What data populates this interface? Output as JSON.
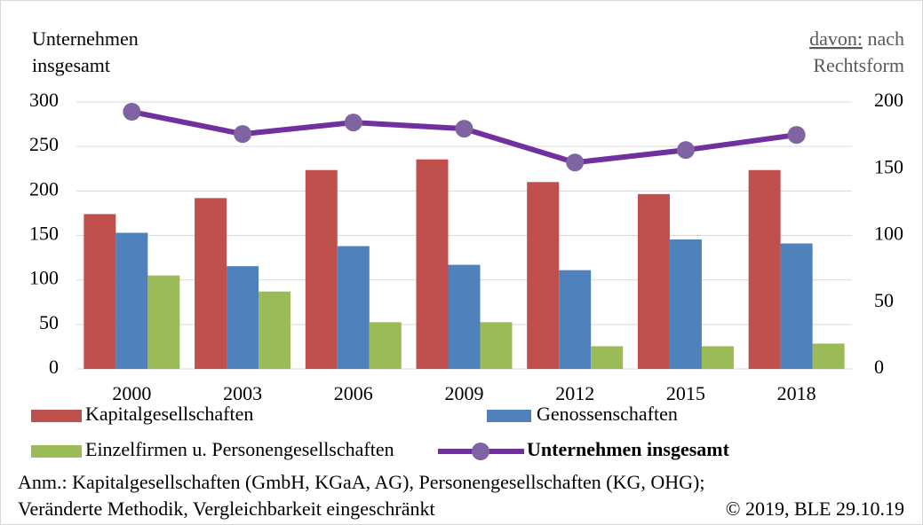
{
  "chart_data": {
    "type": "bar",
    "ylabel": [
      "Unternehmen",
      "insgesamt"
    ],
    "y2label_underlined": "davon:",
    "y2label": [
      "nach",
      "Rechtsform"
    ],
    "categories": [
      "2000",
      "2003",
      "2006",
      "2009",
      "2012",
      "2015",
      "2018"
    ],
    "series": [
      {
        "name": "Kapitalgesellschaften",
        "color": "#c0504d",
        "axis": "y2",
        "type": "bar",
        "values": [
          116,
          128,
          149,
          157,
          140,
          131,
          149
        ]
      },
      {
        "name": "Genossenschaften",
        "color": "#4f81bd",
        "axis": "y2",
        "type": "bar",
        "values": [
          102,
          77,
          92,
          78,
          74,
          97,
          94
        ]
      },
      {
        "name": "Einzelfirmen u. Personengesellschaften",
        "color": "#9bbb59",
        "axis": "y2",
        "type": "bar",
        "values": [
          70,
          58,
          35,
          35,
          17,
          17,
          19
        ]
      },
      {
        "name": "Unternehmen insgesamt",
        "color": "#7030a0",
        "marker_color": "#8064a2",
        "axis": "y",
        "type": "line",
        "values": [
          289,
          264,
          277,
          270,
          232,
          246,
          263
        ]
      }
    ],
    "ylim": [
      0,
      300
    ],
    "yticks": [
      0,
      50,
      100,
      150,
      200,
      250,
      300
    ],
    "y2lim": [
      0,
      200
    ],
    "y2ticks": [
      0,
      50,
      100,
      150,
      200
    ],
    "grid": true,
    "legend": "bottom",
    "notes": [
      "Anm.: Kapitalgesellschaften (GmbH,  KGaA, AG), Personengesellschaften (KG, OHG);",
      "Veränderte Methodik, Vergleichbarkeit  eingeschränkt"
    ],
    "source": "© 2019,  BLE 29.10.19"
  }
}
